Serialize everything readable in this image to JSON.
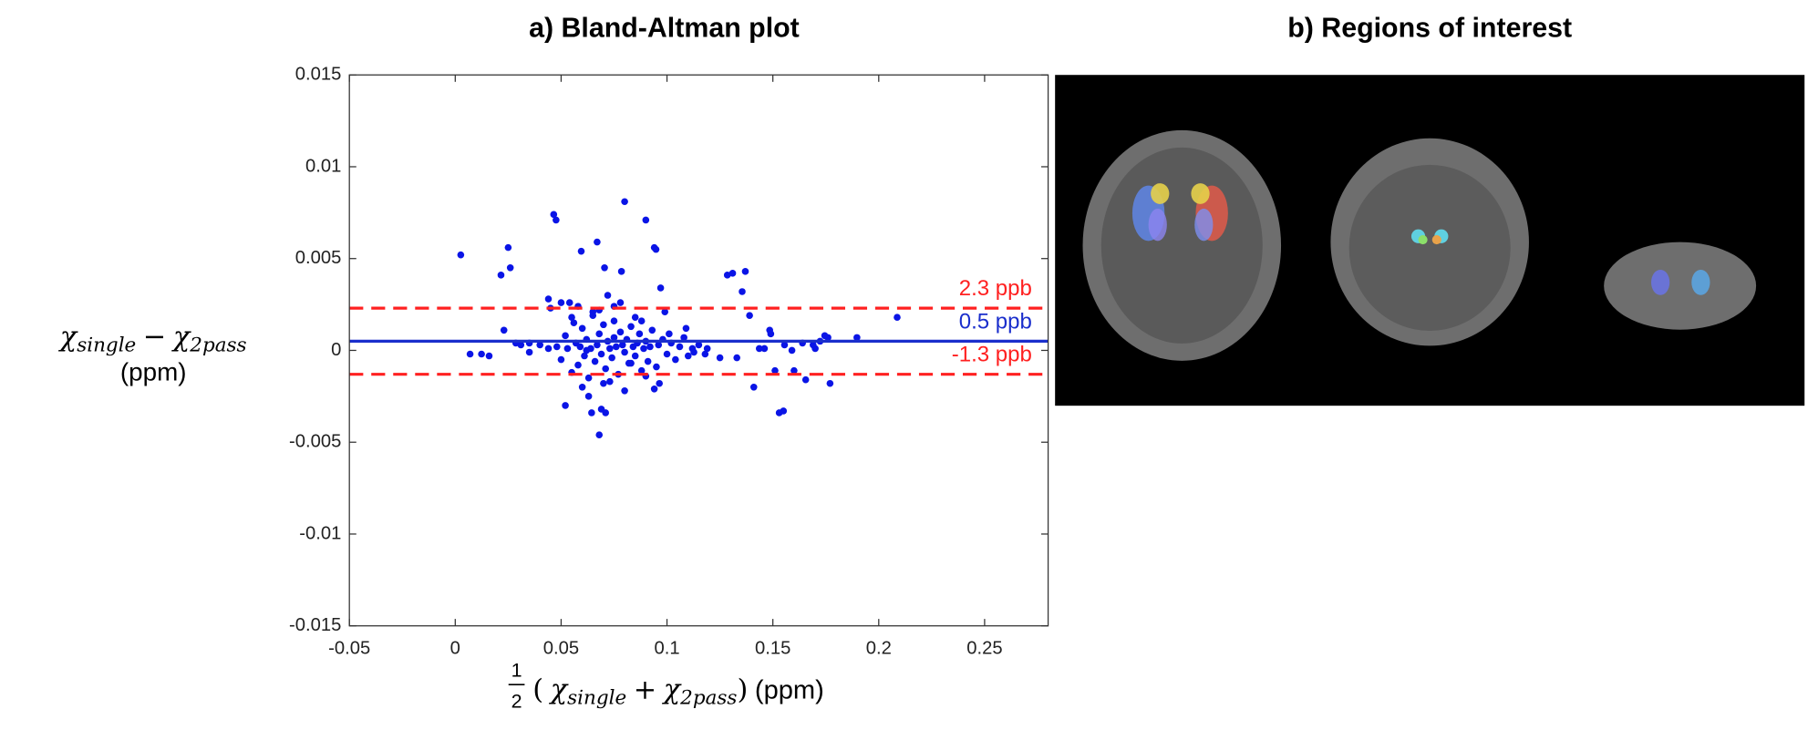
{
  "chart_data": [
    {
      "type": "scatter",
      "title": "a) Bland-Altman plot",
      "ylabel": {
        "symbol1": "χ",
        "sub1": "single",
        "op": "−",
        "symbol2": "χ",
        "sub2": "2pass",
        "unit": "(ppm)"
      },
      "xlabel": {
        "numerator": "1",
        "denominator": "2",
        "open": "(",
        "symbol1": "χ",
        "sub1": "single",
        "op": "+",
        "symbol2": "χ",
        "sub2": "2pass",
        "close": ")",
        "unit": "(ppm)"
      },
      "xlim": [
        -0.05,
        0.28
      ],
      "ylim": [
        -0.015,
        0.015
      ],
      "xticks": [
        -0.05,
        0,
        0.05,
        0.1,
        0.15,
        0.2,
        0.25
      ],
      "yticks": [
        0.015,
        0.01,
        0.005,
        0,
        -0.005,
        -0.01,
        -0.015
      ],
      "color": "#0a14e6",
      "x": [
        0.0026,
        0.007,
        0.0124,
        0.016,
        0.0216,
        0.025,
        0.026,
        0.023,
        0.0286,
        0.031,
        0.035,
        0.035,
        0.04,
        0.044,
        0.044,
        0.0465,
        0.0476,
        0.045,
        0.05,
        0.052,
        0.054,
        0.055,
        0.0595,
        0.062,
        0.0644,
        0.067,
        0.069,
        0.068,
        0.071,
        0.0705,
        0.072,
        0.075,
        0.0785,
        0.08,
        0.083,
        0.09,
        0.094,
        0.0948,
        0.097,
        0.094,
        0.0964,
        0.099,
        0.101,
        0.109,
        0.1127,
        0.119,
        0.125,
        0.1285,
        0.131,
        0.133,
        0.1355,
        0.137,
        0.139,
        0.141,
        0.1436,
        0.146,
        0.1485,
        0.149,
        0.151,
        0.153,
        0.155,
        0.1555,
        0.159,
        0.16,
        0.164,
        0.1655,
        0.169,
        0.17,
        0.1723,
        0.1745,
        0.176,
        0.177,
        0.1897,
        0.2087,
        0.048,
        0.05,
        0.052,
        0.053,
        0.055,
        0.056,
        0.057,
        0.058,
        0.059,
        0.06,
        0.061,
        0.062,
        0.063,
        0.064,
        0.065,
        0.066,
        0.067,
        0.068,
        0.069,
        0.07,
        0.071,
        0.072,
        0.073,
        0.074,
        0.075,
        0.076,
        0.077,
        0.078,
        0.079,
        0.08,
        0.081,
        0.082,
        0.083,
        0.084,
        0.085,
        0.086,
        0.087,
        0.088,
        0.089,
        0.09,
        0.091,
        0.092,
        0.093,
        0.095,
        0.096,
        0.098,
        0.1,
        0.102,
        0.104,
        0.106,
        0.108,
        0.11,
        0.112,
        0.115,
        0.118,
        0.06,
        0.065,
        0.07,
        0.075,
        0.08,
        0.085,
        0.09,
        0.058,
        0.063,
        0.068,
        0.073,
        0.078,
        0.088
      ],
      "values": [
        0.0052,
        -0.0002,
        -0.0002,
        -0.0003,
        0.0041,
        0.0056,
        0.0045,
        0.0011,
        0.0004,
        0.0003,
        0.0004,
        -0.0001,
        0.0003,
        0.0001,
        0.0028,
        0.0074,
        0.0071,
        0.0023,
        0.0026,
        -0.003,
        0.0026,
        0.0018,
        0.0054,
        0,
        -0.0034,
        0.0059,
        -0.0032,
        -0.0046,
        -0.0034,
        0.0045,
        0.003,
        0.0024,
        0.0043,
        0.0081,
        -0.0007,
        0.0071,
        0.0056,
        0.0055,
        0.0034,
        -0.0021,
        -0.0018,
        0.0021,
        0.0009,
        0.0012,
        -0.0001,
        0.0001,
        -0.0004,
        0.0041,
        0.0042,
        -0.0004,
        0.0032,
        0.0043,
        0.0019,
        -0.002,
        0.0001,
        0.0001,
        0.0011,
        0.0009,
        -0.0011,
        -0.0034,
        -0.0033,
        0.0003,
        0,
        -0.0011,
        0.0004,
        -0.0016,
        0.0003,
        0.0001,
        0.0005,
        0.0008,
        0.0007,
        -0.0018,
        0.0007,
        0.0018,
        0.0002,
        -0.0005,
        0.0008,
        0.0001,
        -0.0012,
        0.0015,
        0.0004,
        -0.0008,
        0.0002,
        0.0012,
        -0.0003,
        0.0006,
        -0.0015,
        0.0001,
        0.0019,
        -0.0006,
        0.0003,
        0.0009,
        -0.0002,
        0.0014,
        -0.001,
        0.0005,
        0.0001,
        -0.0004,
        0.0007,
        0.0002,
        -0.0013,
        0.001,
        0.0003,
        -0.0001,
        0.0006,
        -0.0007,
        0.0013,
        0.0002,
        -0.0003,
        0.0004,
        0.0009,
        -0.0011,
        0.0001,
        0.0005,
        -0.0006,
        0.0002,
        0.0011,
        -0.0009,
        0.0003,
        0.0006,
        -0.0002,
        0.0004,
        -0.0005,
        0.0002,
        0.0007,
        -0.0003,
        0.0001,
        0.0003,
        -0.0002,
        -0.002,
        0.0021,
        -0.0018,
        0.0016,
        -0.0022,
        0.0018,
        -0.0014,
        0.0024,
        -0.0025,
        0.0022,
        -0.0017,
        0.0026,
        0.0016
      ],
      "reference_lines": [
        {
          "value": 0.0023,
          "label": "2.3 ppb",
          "color": "#ff2020",
          "style": "dashed"
        },
        {
          "value": 0.0005,
          "label": "0.5 ppb",
          "color": "#1a2ecc",
          "style": "solid"
        },
        {
          "value": -0.0013,
          "label": "-1.3 ppb",
          "color": "#ff2020",
          "style": "dashed"
        }
      ]
    },
    {
      "type": "image",
      "title": "b) Regions of interest"
    }
  ]
}
